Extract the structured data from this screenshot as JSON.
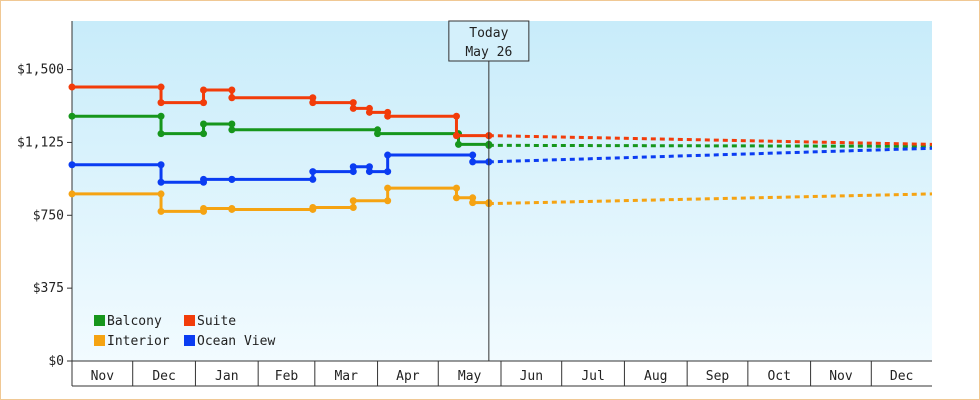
{
  "chart_data": {
    "type": "line",
    "title": "",
    "xlabel": "",
    "ylabel": "",
    "ylim": [
      0,
      1750
    ],
    "yticks": [
      0,
      375,
      750,
      1125,
      1500
    ],
    "ytick_labels": [
      "$0",
      "$375",
      "$750",
      "$1,125",
      "$1,500"
    ],
    "x_start": "2025-11-01",
    "x_end": "2026-12-31",
    "months": [
      {
        "label": "Nov",
        "start": "2025-11-01"
      },
      {
        "label": "Dec",
        "start": "2025-12-01"
      },
      {
        "label": "Jan",
        "start": "2026-01-01"
      },
      {
        "label": "Feb",
        "start": "2026-02-01"
      },
      {
        "label": "Mar",
        "start": "2026-03-01"
      },
      {
        "label": "Apr",
        "start": "2026-04-01"
      },
      {
        "label": "May",
        "start": "2026-05-01"
      },
      {
        "label": "Jun",
        "start": "2026-06-01"
      },
      {
        "label": "Jul",
        "start": "2026-07-01"
      },
      {
        "label": "Aug",
        "start": "2026-08-01"
      },
      {
        "label": "Sep",
        "start": "2026-09-01"
      },
      {
        "label": "Oct",
        "start": "2026-10-01"
      },
      {
        "label": "Nov",
        "start": "2026-11-01"
      },
      {
        "label": "Dec",
        "start": "2026-12-01"
      }
    ],
    "today": {
      "date": "2026-05-26",
      "line1": "Today",
      "line2": "May 26"
    },
    "grid": false,
    "legend_position": "bottom-left",
    "series": [
      {
        "name": "Balcony",
        "color": "#16961c",
        "history": [
          {
            "x": "2025-11-01",
            "y": 1260
          },
          {
            "x": "2025-12-15",
            "y": 1170
          },
          {
            "x": "2026-01-05",
            "y": 1220
          },
          {
            "x": "2026-01-19",
            "y": 1190
          },
          {
            "x": "2026-04-01",
            "y": 1170
          },
          {
            "x": "2026-05-11",
            "y": 1115
          },
          {
            "x": "2026-05-26",
            "y": 1110
          }
        ],
        "forecast": [
          {
            "x": "2026-05-26",
            "y": 1110
          },
          {
            "x": "2026-12-31",
            "y": 1105
          }
        ]
      },
      {
        "name": "Suite",
        "color": "#f23c0a",
        "history": [
          {
            "x": "2025-11-01",
            "y": 1410
          },
          {
            "x": "2025-12-15",
            "y": 1330
          },
          {
            "x": "2026-01-05",
            "y": 1395
          },
          {
            "x": "2026-01-19",
            "y": 1355
          },
          {
            "x": "2026-02-28",
            "y": 1330
          },
          {
            "x": "2026-03-20",
            "y": 1300
          },
          {
            "x": "2026-03-28",
            "y": 1280
          },
          {
            "x": "2026-04-06",
            "y": 1260
          },
          {
            "x": "2026-05-10",
            "y": 1160
          },
          {
            "x": "2026-05-26",
            "y": 1160
          }
        ],
        "forecast": [
          {
            "x": "2026-05-26",
            "y": 1160
          },
          {
            "x": "2026-12-31",
            "y": 1115
          }
        ]
      },
      {
        "name": "Interior",
        "color": "#f5a312",
        "history": [
          {
            "x": "2025-11-01",
            "y": 860
          },
          {
            "x": "2025-12-15",
            "y": 770
          },
          {
            "x": "2026-01-05",
            "y": 785
          },
          {
            "x": "2026-01-19",
            "y": 780
          },
          {
            "x": "2026-02-28",
            "y": 790
          },
          {
            "x": "2026-03-20",
            "y": 825
          },
          {
            "x": "2026-04-06",
            "y": 890
          },
          {
            "x": "2026-05-10",
            "y": 840
          },
          {
            "x": "2026-05-18",
            "y": 815
          },
          {
            "x": "2026-05-26",
            "y": 810
          }
        ],
        "forecast": [
          {
            "x": "2026-05-26",
            "y": 810
          },
          {
            "x": "2026-12-31",
            "y": 860
          }
        ]
      },
      {
        "name": "Ocean View",
        "color": "#0a3cf2",
        "history": [
          {
            "x": "2025-11-01",
            "y": 1010
          },
          {
            "x": "2025-12-15",
            "y": 920
          },
          {
            "x": "2026-01-05",
            "y": 935
          },
          {
            "x": "2026-01-19",
            "y": 935
          },
          {
            "x": "2026-02-28",
            "y": 975
          },
          {
            "x": "2026-03-20",
            "y": 1000
          },
          {
            "x": "2026-03-28",
            "y": 975
          },
          {
            "x": "2026-04-06",
            "y": 1060
          },
          {
            "x": "2026-05-18",
            "y": 1025
          },
          {
            "x": "2026-05-26",
            "y": 1025
          }
        ],
        "forecast": [
          {
            "x": "2026-05-26",
            "y": 1025
          },
          {
            "x": "2026-12-31",
            "y": 1095
          }
        ]
      }
    ]
  }
}
